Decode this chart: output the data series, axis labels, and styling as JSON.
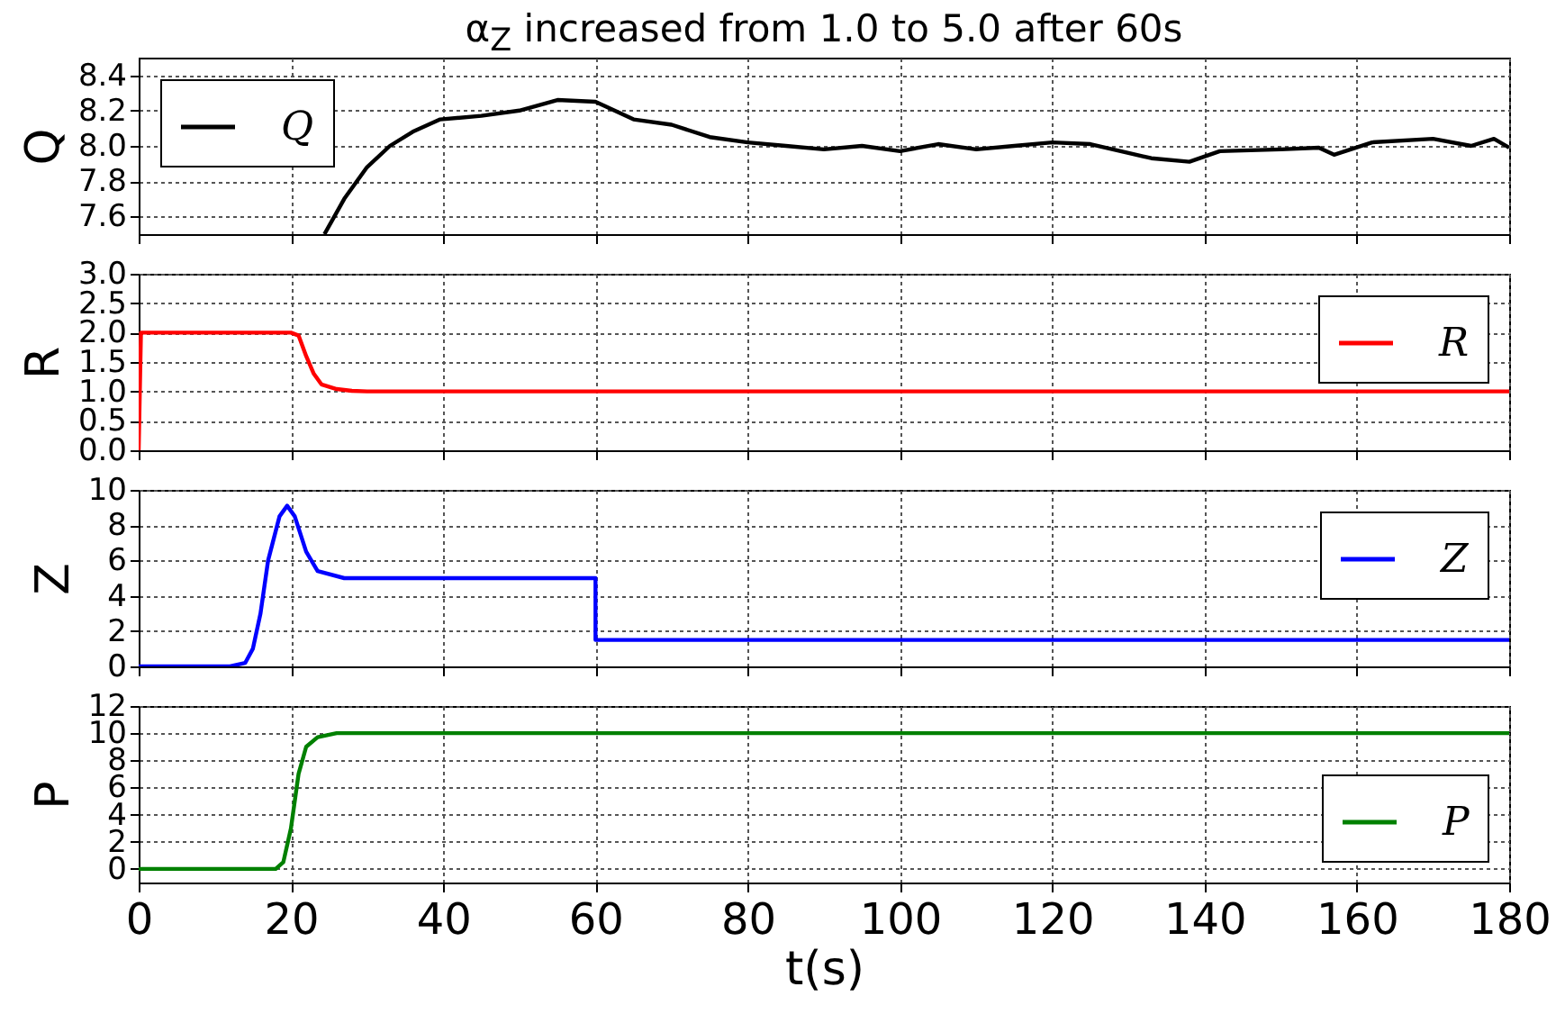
{
  "chart_data": [
    {
      "type": "line",
      "title": "α$_{Z}$ increased from 1.0 to 5.0 after 60s",
      "ylabel": "Q",
      "xlim": [
        0,
        180
      ],
      "xticks": [
        0,
        20,
        40,
        60,
        80,
        100,
        120,
        140,
        160,
        180
      ],
      "ylim": [
        7.5,
        8.5
      ],
      "yticks": [
        7.6,
        7.8,
        {
          "value": 8,
          "label": "8.0"
        },
        8.2,
        8.4
      ],
      "grid": true,
      "legend": "top left",
      "tick_labels": "y",
      "series": [
        {
          "name": "Q",
          "color": "#000000",
          "x": [
            24.4,
            27,
            30,
            33,
            36,
            39.6,
            45,
            50,
            55,
            60,
            65,
            70,
            75,
            80,
            85,
            90,
            95,
            100,
            105,
            110,
            115,
            120,
            125,
            130,
            133,
            138,
            142,
            150,
            155,
            157,
            162,
            170,
            175,
            178,
            180
          ],
          "values": [
            7.5,
            7.7,
            7.88,
            8.0,
            8.08,
            8.15,
            8.17,
            8.2,
            8.26,
            8.25,
            8.15,
            8.12,
            8.05,
            8.02,
            8.0,
            7.98,
            8.0,
            7.97,
            8.01,
            7.98,
            8.0,
            8.02,
            8.01,
            7.96,
            7.93,
            7.91,
            7.97,
            7.98,
            7.99,
            7.95,
            8.02,
            8.04,
            8.0,
            8.04,
            7.99
          ]
        }
      ]
    },
    {
      "type": "line",
      "ylabel": "R",
      "xlim": [
        0,
        180
      ],
      "xticks": [
        0,
        20,
        40,
        60,
        80,
        100,
        120,
        140,
        160,
        180
      ],
      "ylim": [
        0,
        3
      ],
      "yticks": [
        {
          "value": 0,
          "label": "0.0"
        },
        0.5,
        {
          "value": 1,
          "label": "1.0"
        },
        1.5,
        {
          "value": 2,
          "label": "2.0"
        },
        2.5,
        {
          "value": 3,
          "label": "3.0"
        }
      ],
      "grid": true,
      "legend": "top right",
      "tick_labels": "y",
      "series": [
        {
          "name": "R",
          "color": "#ff0000",
          "x": [
            0,
            0.3,
            20,
            21,
            22,
            23,
            24,
            26,
            28,
            30,
            180
          ],
          "values": [
            0,
            2.0,
            2.0,
            1.95,
            1.6,
            1.3,
            1.12,
            1.04,
            1.01,
            1.0,
            1.0
          ]
        }
      ]
    },
    {
      "type": "line",
      "ylabel": "Z",
      "xlim": [
        0,
        180
      ],
      "xticks": [
        0,
        20,
        40,
        60,
        80,
        100,
        120,
        140,
        160,
        180
      ],
      "ylim": [
        0,
        10
      ],
      "yticks": [
        0,
        2,
        4,
        6,
        8,
        10
      ],
      "grid": true,
      "legend": "top right",
      "tick_labels": "y",
      "series": [
        {
          "name": "Z",
          "color": "#0000ff",
          "x": [
            0,
            12,
            14,
            15,
            16,
            17,
            18.5,
            19.5,
            20.5,
            22,
            23.5,
            27,
            60,
            60,
            180
          ],
          "values": [
            0,
            0,
            0.2,
            1,
            3,
            6,
            8.5,
            9.1,
            8.5,
            6.5,
            5.4,
            5,
            5,
            1.5,
            1.5
          ]
        }
      ]
    },
    {
      "type": "line",
      "xlabel": "t(s)",
      "ylabel": "P",
      "xlim": [
        0,
        180
      ],
      "xticks": [
        0,
        20,
        40,
        60,
        80,
        100,
        120,
        140,
        160,
        180
      ],
      "ylim": [
        -1,
        12
      ],
      "yticks": [
        0,
        2,
        4,
        6,
        8,
        10,
        12
      ],
      "grid": true,
      "legend": "bottom right",
      "series": [
        {
          "name": "P",
          "color": "#008000",
          "x": [
            0,
            18,
            19,
            20,
            21,
            22,
            23.5,
            26,
            180
          ],
          "values": [
            0,
            0,
            0.5,
            3,
            7,
            9,
            9.7,
            10,
            10
          ]
        }
      ]
    }
  ]
}
